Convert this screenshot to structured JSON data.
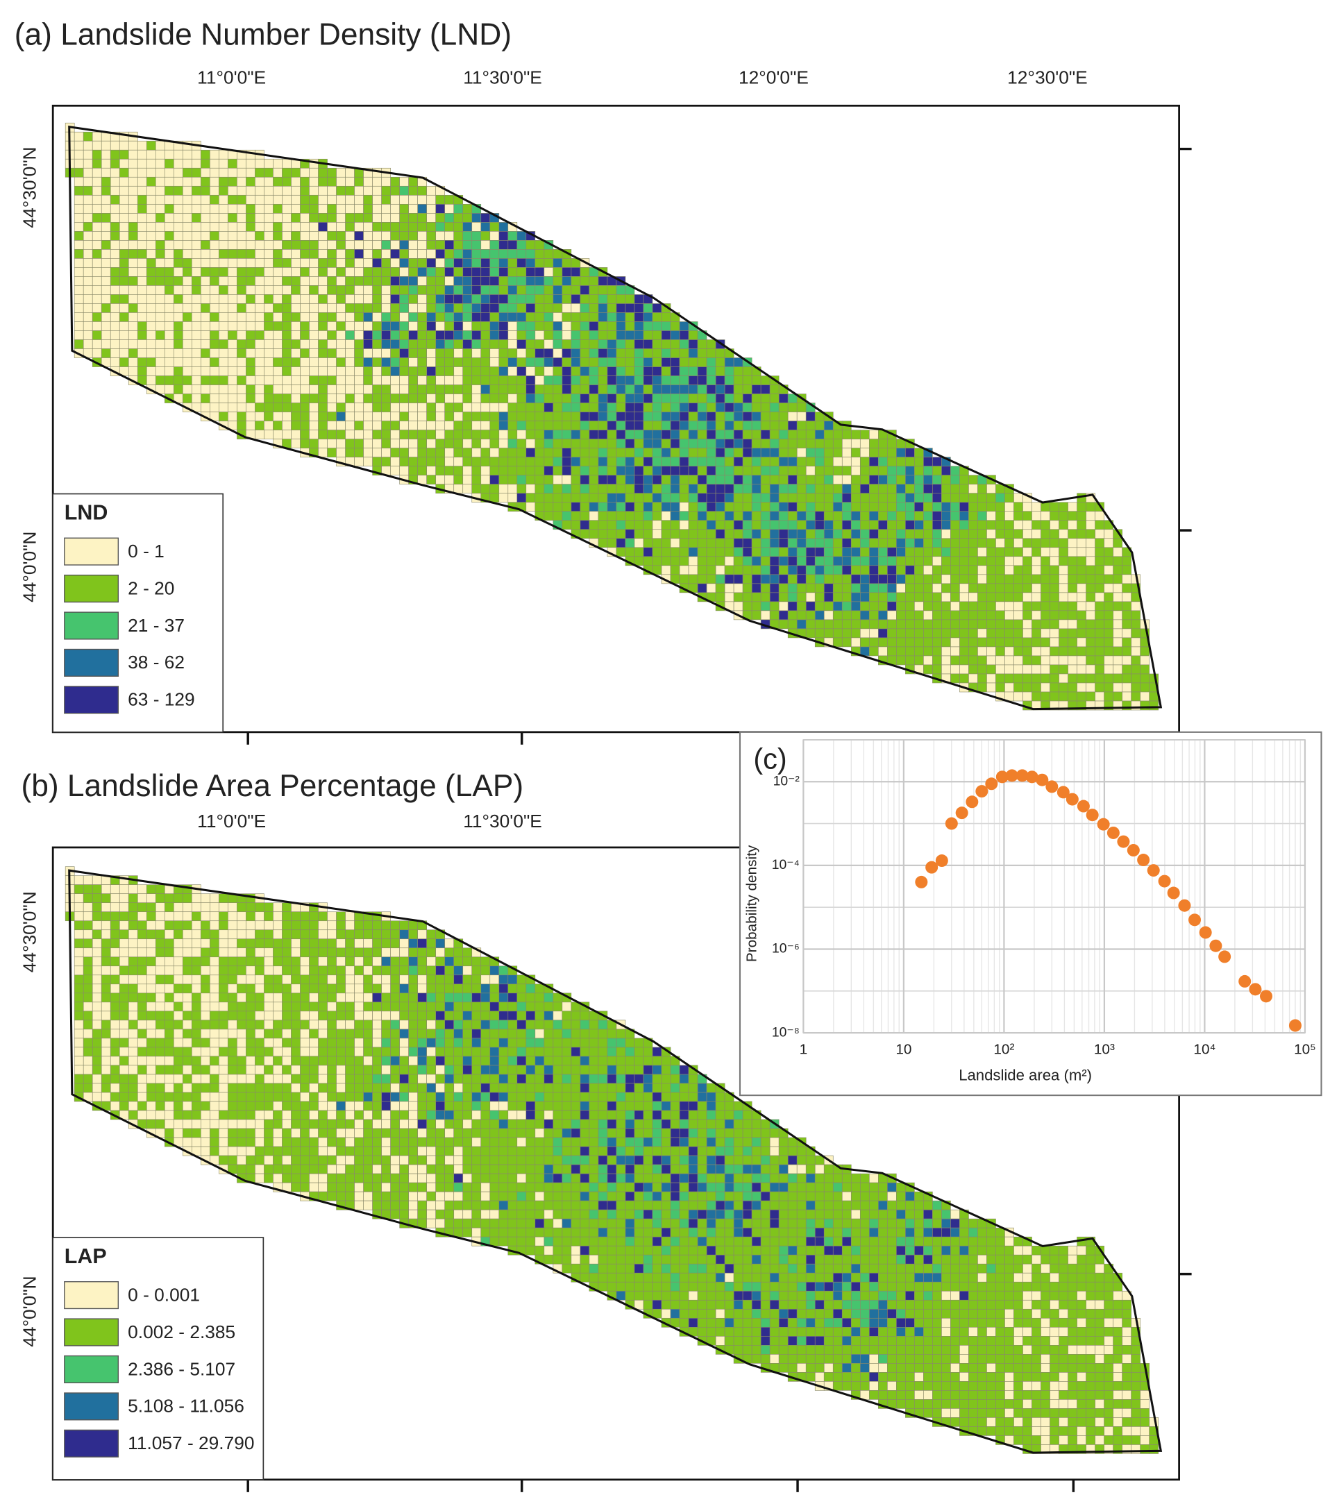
{
  "panels": [
    {
      "title": "(a) Landslide Number Density (LND)",
      "legend_title": "LND",
      "classes": [
        {
          "label": "0 - 1",
          "color": "#fdf3c4"
        },
        {
          "label": "2 - 20",
          "color": "#80c41c"
        },
        {
          "label": "21 - 37",
          "color": "#46c46e"
        },
        {
          "label": "38 - 62",
          "color": "#21709e"
        },
        {
          "label": "63 - 129",
          "color": "#2f2c8e"
        }
      ],
      "lon_labels": [
        "11°0'0\"E",
        "11°30'0\"E",
        "12°0'0\"E",
        "12°30'0\"E"
      ],
      "lat_labels": [
        "44°30'0\"N",
        "44°0'0\"N"
      ]
    },
    {
      "title": "(b) Landslide Area Percentage (LAP)",
      "legend_title": "LAP",
      "classes": [
        {
          "label": "0 - 0.001",
          "color": "#fdf3c4"
        },
        {
          "label": "0.002 - 2.385",
          "color": "#80c41c"
        },
        {
          "label": "2.386 - 5.107",
          "color": "#46c46e"
        },
        {
          "label": "5.108 - 11.056",
          "color": "#21709e"
        },
        {
          "label": "11.057 - 29.790",
          "color": "#2f2c8e"
        }
      ],
      "lon_labels": [
        "11°0'0\"E",
        "11°30'0\"E"
      ],
      "lat_labels": [
        "44°30'0\"N",
        "44°0'0\"N"
      ]
    }
  ],
  "chart_data": {
    "type": "scatter",
    "panel_label": "(c)",
    "xlabel": "Landslide area (m²)",
    "ylabel": "Probability density",
    "log_x": true,
    "log_y": true,
    "grid": true,
    "color": "#f07f2a",
    "xlim": [
      1,
      100000
    ],
    "ylim": [
      1e-08,
      0.1
    ],
    "xticks": [
      1,
      10,
      {
        "value": 100,
        "label": "10²"
      },
      {
        "value": 1000,
        "label": "10³"
      },
      {
        "value": 10000,
        "label": "10⁴"
      },
      {
        "value": 100000,
        "label": "10⁵"
      }
    ],
    "yticks": [
      {
        "value": 1e-08,
        "label": "10⁻⁸"
      },
      {
        "value": 1e-06,
        "label": "10⁻⁶"
      },
      {
        "value": 0.0001,
        "label": "10⁻⁴"
      },
      {
        "value": 0.01,
        "label": "10⁻²"
      }
    ],
    "x": [
      15,
      19,
      24,
      30,
      38,
      48,
      60,
      75,
      96,
      120,
      152,
      190,
      240,
      300,
      390,
      480,
      620,
      760,
      980,
      1230,
      1550,
      1950,
      2450,
      3090,
      3980,
      4900,
      6300,
      7950,
      10200,
      12900,
      15800,
      25100,
      32000,
      41000,
      80000
    ],
    "values": [
      4e-05,
      9e-05,
      0.00013,
      0.001,
      0.0018,
      0.0033,
      0.0059,
      0.0089,
      0.013,
      0.014,
      0.014,
      0.013,
      0.011,
      0.0076,
      0.0056,
      0.0038,
      0.0026,
      0.0016,
      0.00096,
      0.0006,
      0.00037,
      0.00023,
      0.000135,
      7.6e-05,
      4.2e-05,
      2.2e-05,
      1.1e-05,
      5e-06,
      2.5e-06,
      1.2e-06,
      6.6e-07,
      1.7e-07,
      1.1e-07,
      7.5e-08,
      1.5e-08
    ]
  }
}
